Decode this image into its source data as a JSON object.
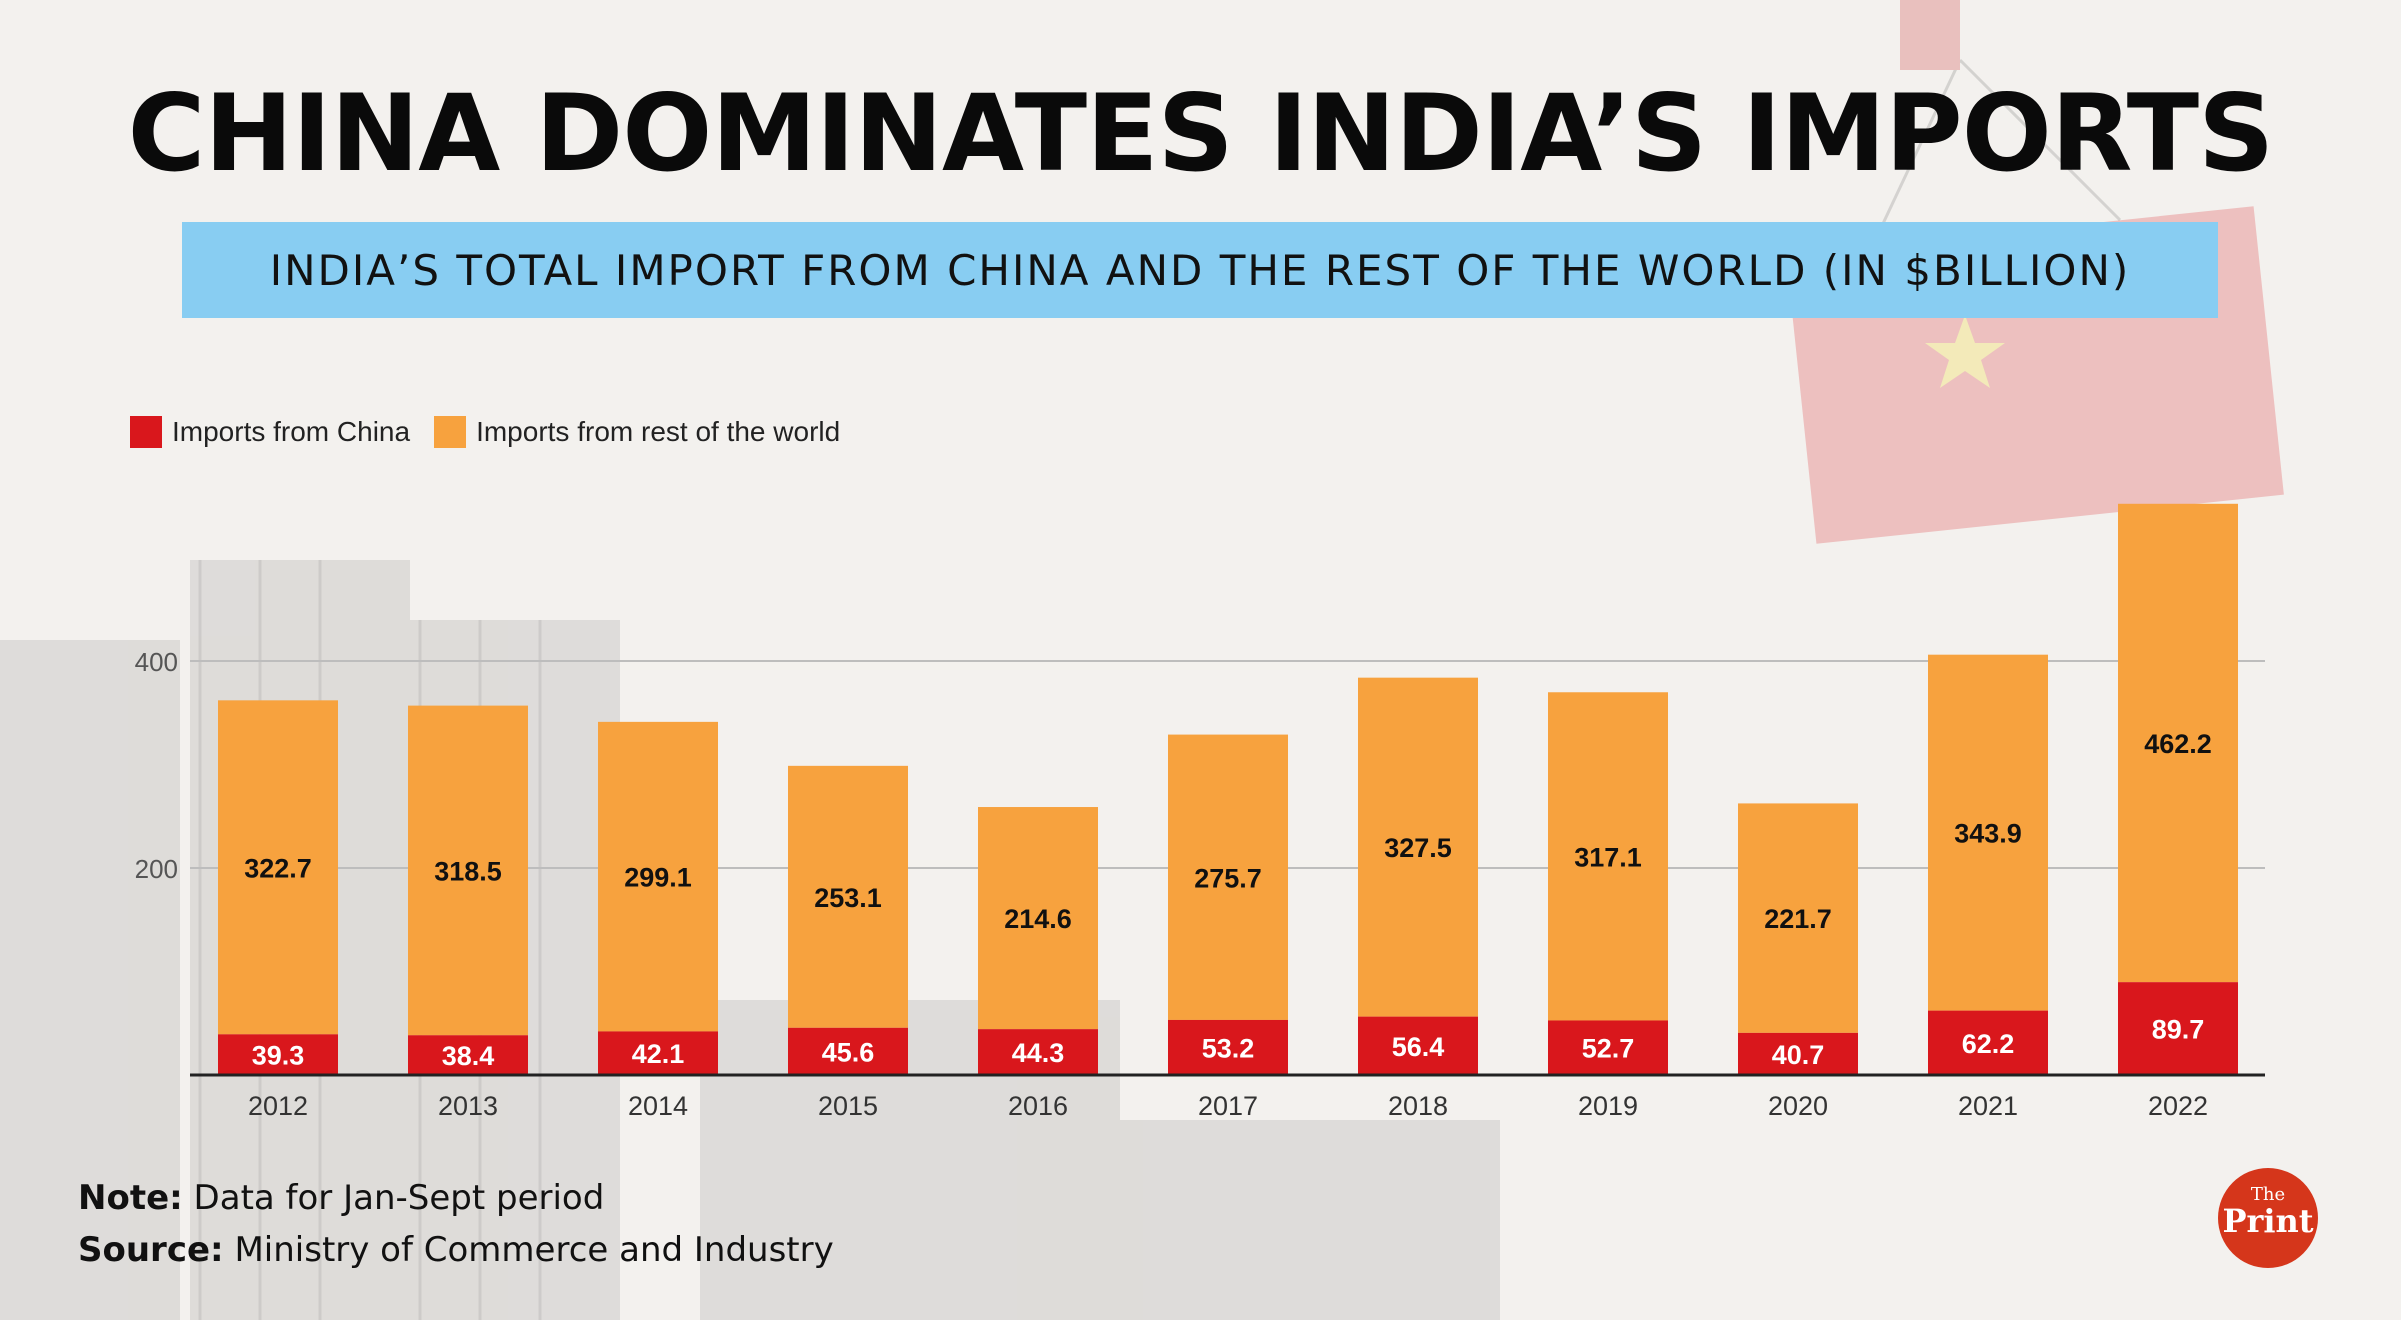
{
  "title": "CHINA DOMINATES INDIA’S IMPORTS",
  "subtitle": "INDIA’S TOTAL IMPORT FROM CHINA AND THE REST OF THE WORLD (IN $BILLION)",
  "colors": {
    "china": "#d9171c",
    "rest": "#f7a23e",
    "subtitle_band": "#88cdf2",
    "logo": "#d5361b"
  },
  "note": {
    "label": "Note:",
    "text": "Data for Jan-Sept period"
  },
  "source": {
    "label": "Source:",
    "text": "Ministry of Commerce and Industry"
  },
  "logo": {
    "line1": "The",
    "line2": "Print"
  },
  "chart_data": {
    "type": "bar",
    "stacked": true,
    "categories": [
      "2012",
      "2013",
      "2014",
      "2015",
      "2016",
      "2017",
      "2018",
      "2019",
      "2020",
      "2021",
      "2022"
    ],
    "series": [
      {
        "name": "Imports from China",
        "color": "#d9171c",
        "values": [
          39.3,
          38.4,
          42.1,
          45.6,
          44.3,
          53.2,
          56.4,
          52.7,
          40.7,
          62.2,
          89.7
        ]
      },
      {
        "name": "Imports from rest of the world",
        "color": "#f7a23e",
        "values": [
          322.7,
          318.5,
          299.1,
          253.1,
          214.6,
          275.7,
          327.5,
          317.1,
          221.7,
          343.9,
          462.2
        ]
      }
    ],
    "yticks": [
      "200",
      "400"
    ],
    "ylim": [
      0,
      560
    ],
    "grid": true,
    "legend": "top-left",
    "xlabel": "",
    "ylabel": ""
  }
}
